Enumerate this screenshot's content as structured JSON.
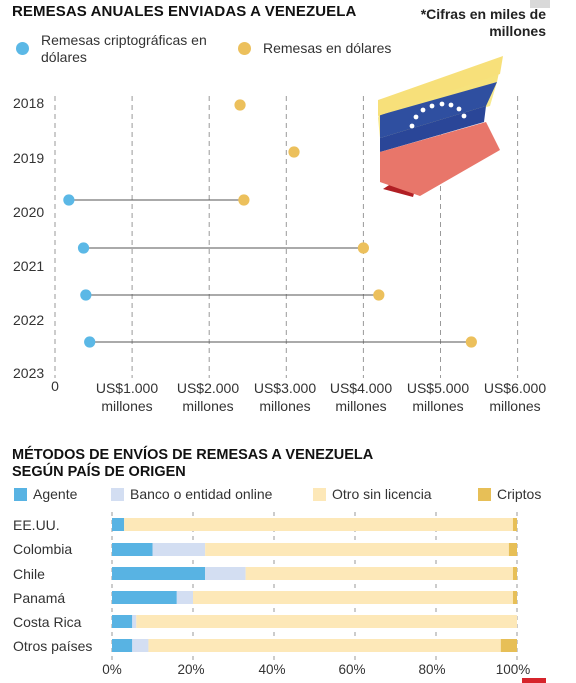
{
  "chart_data": [
    {
      "type": "dot-range",
      "title": "REMESAS ANUALES ENVIADAS A VENEZUELA",
      "note": "*Cifras en miles de millones",
      "xlim": [
        0,
        6200
      ],
      "x_ticks": [
        {
          "value": 0,
          "label": "0",
          "sub": ""
        },
        {
          "value": 1000,
          "label": "US$1.000",
          "sub": "millones"
        },
        {
          "value": 2000,
          "label": "US$2.000",
          "sub": "millones"
        },
        {
          "value": 3000,
          "label": "US$3.000",
          "sub": "millones"
        },
        {
          "value": 4000,
          "label": "US$4.000",
          "sub": "millones"
        },
        {
          "value": 5000,
          "label": "US$5.000",
          "sub": "millones"
        },
        {
          "value": 6000,
          "label": "US$6.000",
          "sub": "millones"
        }
      ],
      "categories": [
        "2018",
        "2019",
        "2020",
        "2021",
        "2022",
        "2023"
      ],
      "series": [
        {
          "name": "Remesas criptográficas en dólares",
          "color": "#5bb8e6",
          "values": [
            null,
            null,
            180,
            370,
            400,
            450
          ]
        },
        {
          "name": "Remesas en dólares",
          "color": "#ecc05c",
          "values": [
            2400,
            3100,
            2450,
            4000,
            4200,
            5400
          ]
        }
      ],
      "legend": [
        {
          "label": "Remesas criptográficas en dólares",
          "color": "#5bb8e6"
        },
        {
          "label": "Remesas en dólares",
          "color": "#ecc05c"
        }
      ],
      "grid": true,
      "legend_position": "top"
    },
    {
      "type": "stacked-bar-horizontal",
      "title_line1": "MÉTODOS DE ENVÍOS DE REMESAS A VENEZUELA",
      "title_line2": "SEGÚN PAÍS DE ORIGEN",
      "categories": [
        "EE.UU.",
        "Colombia",
        "Chile",
        "Panamá",
        "Costa Rica",
        "Otros países"
      ],
      "series": [
        {
          "name": "Agente",
          "color": "#58b3e3",
          "values": [
            3,
            10,
            23,
            16,
            5,
            5
          ]
        },
        {
          "name": "Banco o entidad online",
          "color": "#d3def2",
          "values": [
            0,
            13,
            10,
            4,
            1,
            4
          ]
        },
        {
          "name": "Otro sin licencia",
          "color": "#fde8b8",
          "values": [
            96,
            75,
            66,
            79,
            94,
            87
          ]
        },
        {
          "name": "Criptos",
          "color": "#e7bf57",
          "values": [
            1,
            2,
            1,
            1,
            0,
            4
          ]
        }
      ],
      "x_ticks": [
        "0%",
        "20%",
        "40%",
        "60%",
        "80%",
        "100%"
      ],
      "xlim": [
        0,
        100
      ],
      "grid": true,
      "legend_position": "top"
    }
  ]
}
